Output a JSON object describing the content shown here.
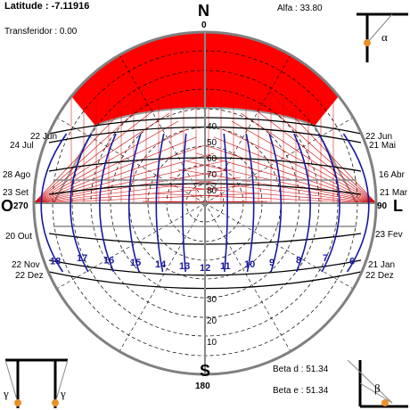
{
  "header": {
    "latitude_label": "Latitude :",
    "latitude_value": "-7.11916",
    "transferidor_label": "Transferidor :",
    "transferidor_value": "0.00",
    "alfa_label": "Alfa :",
    "alfa_value": "33.80",
    "beta_d_label": "Beta d :",
    "beta_d_value": "51.34",
    "beta_e_label": "Beta e :",
    "beta_e_value": "51.34"
  },
  "directions": {
    "north": "N",
    "south": "S",
    "west": "O",
    "east": "L",
    "north_deg": "0",
    "south_deg": "180",
    "west_deg": "270",
    "east_deg": "90"
  },
  "altitude_labels": [
    "10",
    "20",
    "30",
    "40",
    "50",
    "60",
    "70",
    "80"
  ],
  "months_left": [
    "22 Jun",
    "24 Jul",
    "28 Ago",
    "23 Set",
    "20 Out",
    "22 Nov",
    "22 Dez"
  ],
  "months_right": [
    "22 Jun",
    "21 Mai",
    "16 Abr",
    "21 Mar",
    "23 Fev",
    "21 Jan",
    "22 Dez"
  ],
  "hours": [
    "18",
    "17",
    "16",
    "15",
    "14",
    "13",
    "12",
    "11",
    "10",
    "9",
    "8",
    "7",
    "6"
  ],
  "angle_symbols": {
    "alpha": "α",
    "gamma": "γ",
    "beta": "β"
  },
  "colors": {
    "mask": "#ff0000",
    "mask_lines": "#cc0000",
    "hour_lines": "#1a1aa0",
    "day_lines": "#000000",
    "circle": "#808080"
  }
}
